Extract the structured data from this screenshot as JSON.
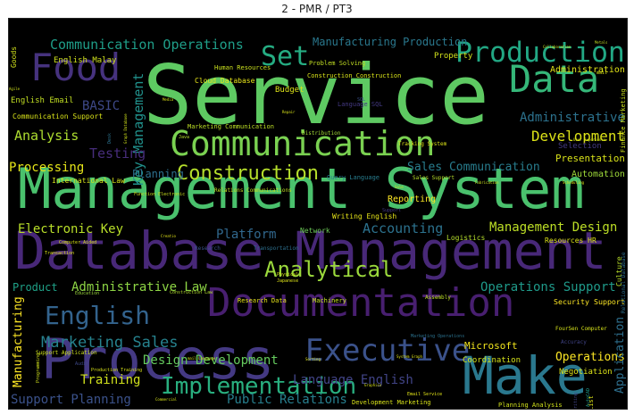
{
  "chart_data": {
    "type": "wordcloud",
    "title": "2 - PMR / PT3",
    "background": "#000000",
    "colormap": "viridis",
    "words": [
      {
        "text": "Service",
        "weight": 100,
        "color": "#5ec962"
      },
      {
        "text": "Management System",
        "weight": 78,
        "color": "#4ac16d"
      },
      {
        "text": "Database Management",
        "weight": 74,
        "color": "#482878"
      },
      {
        "text": "Process",
        "weight": 72,
        "color": "#443983"
      },
      {
        "text": "Make",
        "weight": 70,
        "color": "#2a788e"
      },
      {
        "text": "Documentation",
        "weight": 60,
        "color": "#481f70"
      },
      {
        "text": "Food",
        "weight": 48,
        "color": "#46327e"
      },
      {
        "text": "Data",
        "weight": 48,
        "color": "#35b779"
      },
      {
        "text": "Communication",
        "weight": 46,
        "color": "#7ad151"
      },
      {
        "text": "Production",
        "weight": 40,
        "color": "#22a884"
      },
      {
        "text": "Executive",
        "weight": 40,
        "color": "#3b528b"
      },
      {
        "text": "Set",
        "weight": 36,
        "color": "#25ac82"
      },
      {
        "text": "English",
        "weight": 34,
        "color": "#33638d"
      },
      {
        "text": "Implementation",
        "weight": 32,
        "color": "#29af7f"
      },
      {
        "text": "Analytical",
        "weight": 28,
        "color": "#9bd93c"
      },
      {
        "text": "Construction",
        "weight": 26,
        "color": "#b5de2b"
      },
      {
        "text": "Administrative",
        "weight": 22,
        "color": "#2c728e"
      },
      {
        "text": "Marketing Sales",
        "weight": 20,
        "color": "#26828e"
      },
      {
        "text": "Key Management",
        "weight": 20,
        "color": "#21918c"
      },
      {
        "text": "Development",
        "weight": 18,
        "color": "#dde318"
      },
      {
        "text": "Communication Operations",
        "weight": 18,
        "color": "#1f9e89"
      },
      {
        "text": "Manufacturing Production",
        "weight": 15,
        "color": "#2a788e"
      },
      {
        "text": "Analysis",
        "weight": 17,
        "color": "#addc30"
      },
      {
        "text": "Testing",
        "weight": 17,
        "color": "#472d7b"
      },
      {
        "text": "BASIC",
        "weight": 16,
        "color": "#3e4989"
      },
      {
        "text": "Processing",
        "weight": 16,
        "color": "#e5e419"
      },
      {
        "text": "Electronic Key",
        "weight": 16,
        "color": "#b8de29"
      },
      {
        "text": "Platform",
        "weight": 16,
        "color": "#31688e"
      },
      {
        "text": "Accounting",
        "weight": 17,
        "color": "#2c728e"
      },
      {
        "text": "Management Design",
        "weight": 17,
        "color": "#bddf26"
      },
      {
        "text": "Operations Support",
        "weight": 17,
        "color": "#1f9a8a"
      },
      {
        "text": "Administrative Law",
        "weight": 17,
        "color": "#8ed645"
      },
      {
        "text": "Design Development",
        "weight": 17,
        "color": "#65cb5e"
      },
      {
        "text": "Language English",
        "weight": 17,
        "color": "#414487"
      },
      {
        "text": "Public Relations",
        "weight": 17,
        "color": "#277f8e"
      },
      {
        "text": "Support Planning",
        "weight": 17,
        "color": "#3b528b"
      },
      {
        "text": "Training",
        "weight": 17,
        "color": "#d0e11c"
      },
      {
        "text": "Sales Communication",
        "weight": 16,
        "color": "#287d8e"
      },
      {
        "text": "Operations",
        "weight": 16,
        "color": "#fde725"
      },
      {
        "text": "Application",
        "weight": 16,
        "color": "#2e6f8e"
      },
      {
        "text": "Manufacturing",
        "weight": 16,
        "color": "#fde725"
      },
      {
        "text": "Planning",
        "weight": 14,
        "color": "#2d708e"
      },
      {
        "text": "Product",
        "weight": 14,
        "color": "#1fa187"
      },
      {
        "text": "Presentation",
        "weight": 12,
        "color": "#d8e219"
      },
      {
        "text": "Automation",
        "weight": 12,
        "color": "#9fda3a"
      },
      {
        "text": "Microsoft",
        "weight": 12,
        "color": "#f1e51d"
      },
      {
        "text": "Coordination",
        "weight": 10,
        "color": "#d5e21a"
      },
      {
        "text": "Reporting",
        "weight": 11,
        "color": "#fde725"
      },
      {
        "text": "Administration",
        "weight": 11,
        "color": "#e2e418"
      },
      {
        "text": "Selection",
        "weight": 10,
        "color": "#443a83"
      },
      {
        "text": "Security Support",
        "weight": 10,
        "color": "#fde725"
      },
      {
        "text": "Negotiation",
        "weight": 10,
        "color": "#dde318"
      },
      {
        "text": "English Malay",
        "weight": 10,
        "color": "#d0e11c"
      },
      {
        "text": "English Email",
        "weight": 10,
        "color": "#c2df23"
      },
      {
        "text": "Communication Support",
        "weight": 10,
        "color": "#d8e219"
      },
      {
        "text": "Budget",
        "weight": 10,
        "color": "#dde318"
      },
      {
        "text": "Property",
        "weight": 10,
        "color": "#d2e21b"
      },
      {
        "text": "International Law",
        "weight": 9,
        "color": "#d5e21a"
      },
      {
        "text": "Resources HR",
        "weight": 9,
        "color": "#dde318"
      },
      {
        "text": "Writing English",
        "weight": 9,
        "color": "#e5e419"
      },
      {
        "text": "Logistics",
        "weight": 9,
        "color": "#b5de2b"
      },
      {
        "text": "Network",
        "weight": 9,
        "color": "#6ece58"
      },
      {
        "text": "Cloud Database",
        "weight": 9,
        "color": "#e7e419"
      },
      {
        "text": "Human Resources",
        "weight": 8,
        "color": "#cae11f"
      },
      {
        "text": "Problem Solving",
        "weight": 8,
        "color": "#c2df23"
      },
      {
        "text": "Construction Construction",
        "weight": 8,
        "color": "#d8e219"
      },
      {
        "text": "Language SQL",
        "weight": 8,
        "color": "#443983"
      },
      {
        "text": "Marketing Communication",
        "weight": 8,
        "color": "#bddf26"
      },
      {
        "text": "Distribution",
        "weight": 7,
        "color": "#a2da37"
      },
      {
        "text": "Tracking System",
        "weight": 7,
        "color": "#dde318"
      },
      {
        "text": "Sales Support",
        "weight": 7,
        "color": "#b8de29"
      },
      {
        "text": "Query Language",
        "weight": 7,
        "color": "#287d8e"
      },
      {
        "text": "Culture",
        "weight": 8,
        "color": "#b8de29"
      },
      {
        "text": "Finance Marketing",
        "weight": 7,
        "color": "#cde11d"
      },
      {
        "text": "Goods",
        "weight": 8,
        "color": "#d0e11c"
      },
      {
        "text": "Research Data",
        "weight": 8,
        "color": "#e5e419"
      },
      {
        "text": "Machinery",
        "weight": 7,
        "color": "#c5e021"
      },
      {
        "text": "Assembly",
        "weight": 7,
        "color": "#bddf26"
      },
      {
        "text": "Accuracy",
        "weight": 7,
        "color": "#414487"
      },
      {
        "text": "Construction Law",
        "weight": 6,
        "color": "#b2dd2d"
      },
      {
        "text": "Education",
        "weight": 6,
        "color": "#9bd93c"
      },
      {
        "text": "Production Training",
        "weight": 6,
        "color": "#d8e219"
      },
      {
        "text": "Engineering Management",
        "weight": 6,
        "color": "#d5e21a"
      },
      {
        "text": "Relations Communications",
        "weight": 6,
        "color": "#c2df23"
      },
      {
        "text": "Function Electronic",
        "weight": 6,
        "color": "#cae11f"
      },
      {
        "text": "Computer Aided",
        "weight": 6,
        "color": "#d8e219"
      },
      {
        "text": "Transaction",
        "weight": 6,
        "color": "#dde318"
      },
      {
        "text": "Transportation",
        "weight": 7,
        "color": "#2d708e"
      },
      {
        "text": "Research",
        "weight": 7,
        "color": "#3b528b"
      },
      {
        "text": "Physical",
        "weight": 6,
        "color": "#d2e21b"
      },
      {
        "text": "Japanese",
        "weight": 6,
        "color": "#dde318"
      },
      {
        "text": "Support Application",
        "weight": 7,
        "color": "#cde11d"
      },
      {
        "text": "Marketing Operations",
        "weight": 6,
        "color": "#2c728e"
      },
      {
        "text": "Development Marketing",
        "weight": 8,
        "color": "#d8e219"
      },
      {
        "text": "Planning Analysis",
        "weight": 7,
        "color": "#d2e21b"
      },
      {
        "text": "Email Service",
        "weight": 6,
        "color": "#e2e418"
      },
      {
        "text": "System Graph",
        "weight": 5,
        "color": "#dde318"
      },
      {
        "text": "FourSen Computer",
        "weight": 6,
        "color": "#d5e21a"
      },
      {
        "text": "Relational Database",
        "weight": 7,
        "color": "#2e6f8e"
      },
      {
        "text": "AutoCAD",
        "weight": 6,
        "color": "#1f9a8a"
      },
      {
        "text": "Writing",
        "weight": 6,
        "color": "#414487"
      },
      {
        "text": "List",
        "weight": 8,
        "color": "#dde318"
      },
      {
        "text": "Audit",
        "weight": 6,
        "color": "#3e4989"
      },
      {
        "text": "Programming",
        "weight": 6,
        "color": "#d0e11c"
      },
      {
        "text": "Sorting",
        "weight": 6,
        "color": "#dde318"
      },
      {
        "text": "mail Language",
        "weight": 5,
        "color": "#d5e21a"
      },
      {
        "text": "Graphics",
        "weight": 5,
        "color": "#d8e219"
      },
      {
        "text": "Scheduling",
        "weight": 5,
        "color": "#dde318"
      },
      {
        "text": "Sale",
        "weight": 5,
        "color": "#d0e11c"
      },
      {
        "text": "Fabrication",
        "weight": 5,
        "color": "#cae11f"
      },
      {
        "text": "SQL",
        "weight": 5,
        "color": "#3b528b"
      },
      {
        "text": "Metals",
        "weight": 5,
        "color": "#c2df23"
      },
      {
        "text": "mail",
        "weight": 6,
        "color": "#d5e21a"
      },
      {
        "text": "User Experience",
        "weight": 5,
        "color": "#d0e11c"
      },
      {
        "text": "Collaboration",
        "weight": 5,
        "color": "#c8e020"
      },
      {
        "text": "Java",
        "weight": 5,
        "color": "#b5de2b"
      },
      {
        "text": "Repair",
        "weight": 5,
        "color": "#d8e219"
      },
      {
        "text": "Media",
        "weight": 5,
        "color": "#dde318"
      },
      {
        "text": "Commercial",
        "weight": 5,
        "color": "#d5e21a"
      },
      {
        "text": "Production Repair",
        "weight": 5,
        "color": "#d8e219"
      },
      {
        "text": "Market Media",
        "weight": 5,
        "color": "#dde318"
      },
      {
        "text": "Agile",
        "weight": 5,
        "color": "#d0e11c"
      },
      {
        "text": "Creatio",
        "weight": 5,
        "color": "#e2e418"
      },
      {
        "text": "Desk",
        "weight": 5,
        "color": "#2c728e"
      },
      {
        "text": "Support",
        "weight": 5,
        "color": "#443983"
      },
      {
        "text": "Graph Database",
        "weight": 5,
        "color": "#d2e21b"
      }
    ]
  }
}
